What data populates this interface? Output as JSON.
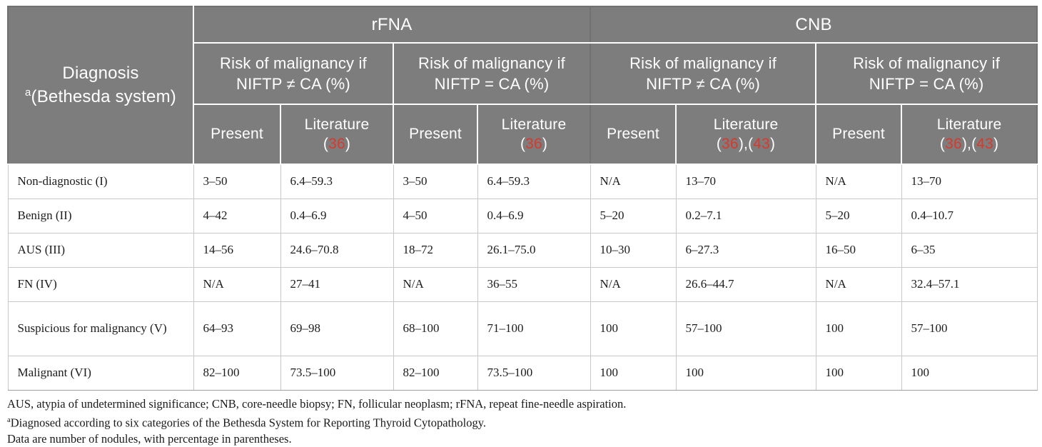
{
  "colors": {
    "header_bg": "#7d7d7d",
    "header_text": "#ffffff",
    "citation_red": "#db382c",
    "body_text": "#1c1c1c",
    "grid_line": "#c8c8c8"
  },
  "header": {
    "diagnosis_line1": "Diagnosis",
    "diagnosis_sup": "a",
    "diagnosis_line2": "(Bethesda system)",
    "groups": [
      {
        "label": "rFNA"
      },
      {
        "label": "CNB"
      }
    ],
    "subheaders": [
      {
        "title_line1": "Risk of malignancy if",
        "title_line2": "NIFTP ≠ CA (%)"
      },
      {
        "title_line1": "Risk of malignancy if",
        "title_line2": "NIFTP = CA (%)"
      },
      {
        "title_line1": "Risk of malignancy if",
        "title_line2": "NIFTP ≠ CA (%)"
      },
      {
        "title_line1": "Risk of malignancy if",
        "title_line2": "NIFTP = CA (%)"
      }
    ],
    "present_label": "Present",
    "literature_label": "Literature",
    "literature_citations": [
      [
        "36"
      ],
      [
        "36"
      ],
      [
        "36",
        "43"
      ],
      [
        "36",
        "43"
      ]
    ]
  },
  "rows": [
    {
      "diagnosis": "Non-diagnostic (I)",
      "values": [
        "3–50",
        "6.4–59.3",
        "3–50",
        "6.4–59.3",
        "N/A",
        "13–70",
        "N/A",
        "13–70"
      ]
    },
    {
      "diagnosis": "Benign (II)",
      "values": [
        "4–42",
        "0.4–6.9",
        "4–50",
        "0.4–6.9",
        "5–20",
        "0.2–7.1",
        "5–20",
        "0.4–10.7"
      ]
    },
    {
      "diagnosis": "AUS (III)",
      "values": [
        "14–56",
        "24.6–70.8",
        "18–72",
        "26.1–75.0",
        "10–30",
        "6–27.3",
        "16–50",
        "6–35"
      ]
    },
    {
      "diagnosis": "FN (IV)",
      "values": [
        "N/A",
        "27–41",
        "N/A",
        "36–55",
        "N/A",
        "26.6–44.7",
        "N/A",
        "32.4–57.1"
      ]
    },
    {
      "diagnosis": "Suspicious for malignancy (V)",
      "values": [
        "64–93",
        "69–98",
        "68–100",
        "71–100",
        "100",
        "57–100",
        "100",
        "57–100"
      ]
    },
    {
      "diagnosis": "Malignant (VI)",
      "values": [
        "82–100",
        "73.5–100",
        "82–100",
        "73.5–100",
        "100",
        "100",
        "100",
        "100"
      ]
    }
  ],
  "footnotes": {
    "abbreviations": "AUS, atypia of undetermined significance; CNB, core-needle biopsy; FN, follicular neoplasm; rFNA, repeat fine-needle aspiration.",
    "note_a_sup": "a",
    "note_a": "Diagnosed according to six categories of the Bethesda System for Reporting Thyroid Cytopathology.",
    "note_data": "Data are number of nodules, with percentage in parentheses."
  }
}
